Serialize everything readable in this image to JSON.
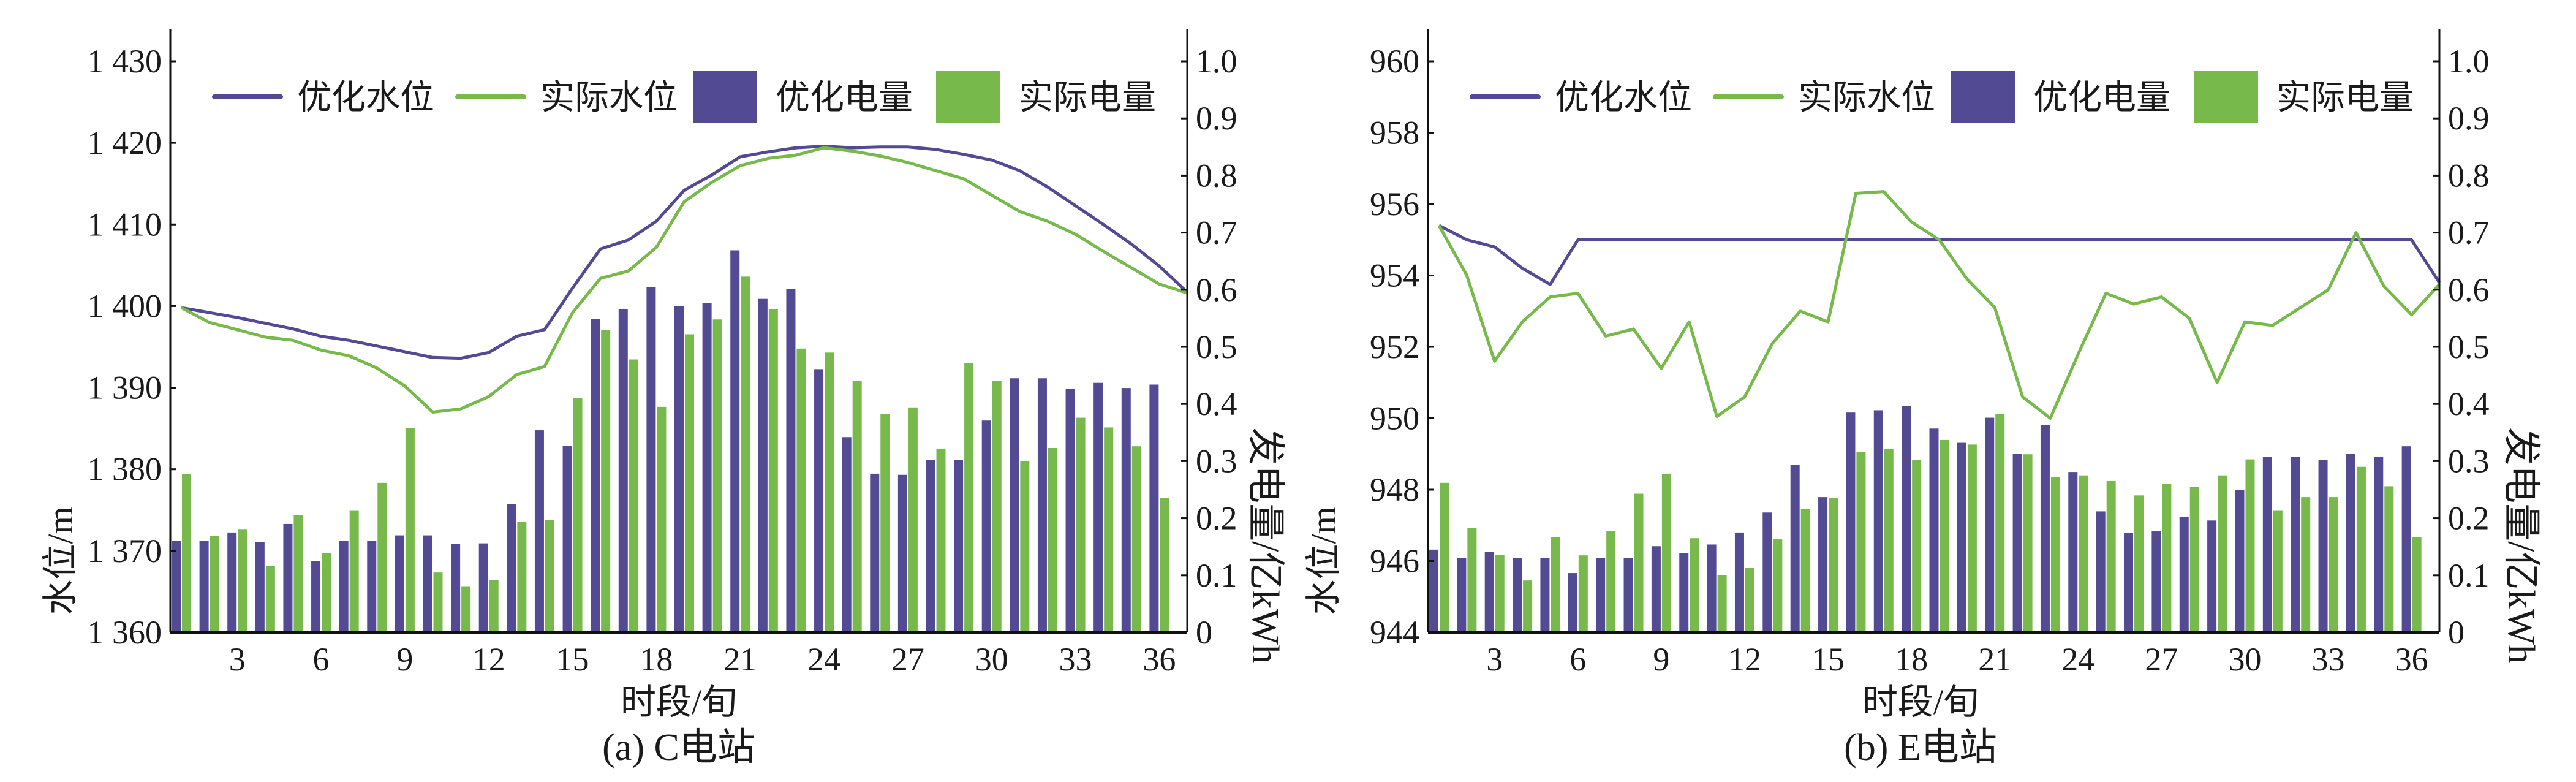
{
  "colors": {
    "optimized": "#524a93",
    "actual": "#77b94b",
    "axis": "#111111"
  },
  "chart_data": [
    {
      "type": "bar+line",
      "caption": "(a) C电站",
      "xlabel": "时段/旬",
      "ylabel_left": "水位/m",
      "ylabel_right": "发电量/亿kWh",
      "ylim_left": [
        1360,
        1430
      ],
      "ylim_right": [
        0,
        1.0
      ],
      "yticks_left": [
        "1 360",
        "1 370",
        "1 380",
        "1 390",
        "1 400",
        "1 410",
        "1 420",
        "1 430"
      ],
      "yticks_left_values": [
        1360,
        1370,
        1380,
        1390,
        1400,
        1410,
        1420,
        1430
      ],
      "yticks_right": [
        "0",
        "0.1",
        "0.2",
        "0.3",
        "0.4",
        "0.5",
        "0.6",
        "0.7",
        "0.8",
        "0.9",
        "1.0"
      ],
      "xticks": [
        "3",
        "6",
        "9",
        "12",
        "15",
        "18",
        "21",
        "24",
        "27",
        "30",
        "33",
        "36"
      ],
      "legend": [
        "优化水位",
        "实际水位",
        "优化电量",
        "实际电量"
      ],
      "legend_position": "top",
      "grid": false,
      "series": [
        {
          "name": "优化水位",
          "kind": "line",
          "axis": "left",
          "x_start": 1,
          "values": [
            1399.8,
            1399.2,
            1398.6,
            1397.9,
            1397.2,
            1396.3,
            1395.8,
            1395.1,
            1394.4,
            1393.7,
            1393.6,
            1394.3,
            1396.3,
            1397.1,
            1402.2,
            1407.0,
            1408.1,
            1410.4,
            1414.2,
            1416.1,
            1418.3,
            1418.9,
            1419.4,
            1419.6,
            1419.4,
            1419.5,
            1419.5,
            1419.2,
            1418.6,
            1417.9,
            1416.6,
            1414.6,
            1412.3,
            1410.0,
            1407.6,
            1404.9,
            1401.7
          ]
        },
        {
          "name": "实际水位",
          "kind": "line",
          "axis": "left",
          "x_start": 1,
          "values": [
            1399.8,
            1398.0,
            1397.1,
            1396.2,
            1395.8,
            1394.6,
            1393.9,
            1392.4,
            1390.2,
            1387.0,
            1387.4,
            1388.9,
            1391.6,
            1392.6,
            1399.2,
            1403.4,
            1404.3,
            1407.2,
            1412.8,
            1415.2,
            1417.2,
            1418.1,
            1418.5,
            1419.4,
            1419.0,
            1418.4,
            1417.6,
            1416.6,
            1415.6,
            1413.6,
            1411.6,
            1410.4,
            1408.8,
            1406.7,
            1404.7,
            1402.7,
            1401.6
          ]
        },
        {
          "name": "优化电量",
          "kind": "bar",
          "axis": "right",
          "x_start": 1,
          "values": [
            0.16,
            0.16,
            0.175,
            0.158,
            0.19,
            0.125,
            0.16,
            0.16,
            0.17,
            0.17,
            0.155,
            0.156,
            0.225,
            0.354,
            0.327,
            0.549,
            0.566,
            0.605,
            0.571,
            0.577,
            0.669,
            0.584,
            0.601,
            0.461,
            0.342,
            0.278,
            0.276,
            0.302,
            0.302,
            0.371,
            0.445,
            0.445,
            0.427,
            0.437,
            0.428,
            0.434
          ]
        },
        {
          "name": "实际电量",
          "kind": "bar",
          "axis": "right",
          "x_start": 1,
          "values": [
            0.277,
            0.169,
            0.181,
            0.117,
            0.206,
            0.139,
            0.214,
            0.262,
            0.358,
            0.105,
            0.081,
            0.092,
            0.194,
            0.197,
            0.41,
            0.529,
            0.478,
            0.395,
            0.522,
            0.548,
            0.623,
            0.566,
            0.497,
            0.49,
            0.441,
            0.382,
            0.394,
            0.322,
            0.471,
            0.44,
            0.3,
            0.323,
            0.376,
            0.359,
            0.326,
            0.236
          ]
        }
      ]
    },
    {
      "type": "bar+line",
      "caption": "(b) E电站",
      "xlabel": "时段/旬",
      "ylabel_left": "水位/m",
      "ylabel_right": "发电量/亿kWh",
      "ylim_left": [
        944,
        960
      ],
      "ylim_right": [
        0,
        1.0
      ],
      "yticks_left": [
        "944",
        "946",
        "948",
        "950",
        "952",
        "954",
        "956",
        "958",
        "960"
      ],
      "yticks_left_values": [
        944,
        946,
        948,
        950,
        952,
        954,
        956,
        958,
        960
      ],
      "yticks_right": [
        "0",
        "0.1",
        "0.2",
        "0.3",
        "0.4",
        "0.5",
        "0.6",
        "0.7",
        "0.8",
        "0.9",
        "1.0"
      ],
      "xticks": [
        "3",
        "6",
        "9",
        "12",
        "15",
        "18",
        "21",
        "24",
        "27",
        "30",
        "33",
        "36"
      ],
      "legend": [
        "优化水位",
        "实际水位",
        "优化电量",
        "实际电量"
      ],
      "legend_position": "top",
      "grid": false,
      "series": [
        {
          "name": "优化水位",
          "kind": "line",
          "axis": "left",
          "x_start": 1,
          "values": [
            955.4,
            955.0,
            954.8,
            954.2,
            953.75,
            955,
            955,
            955,
            955,
            955,
            955,
            955,
            955,
            955,
            955,
            955,
            955,
            955,
            955,
            955,
            955,
            955,
            955,
            955,
            955,
            955,
            955,
            955,
            955,
            955,
            955,
            955,
            955,
            955,
            955,
            955,
            953.8
          ]
        },
        {
          "name": "实际水位",
          "kind": "line",
          "axis": "left",
          "x_start": 1,
          "values": [
            955.4,
            954.0,
            951.6,
            952.7,
            953.4,
            953.5,
            952.3,
            952.5,
            951.4,
            952.7,
            950.05,
            950.6,
            952.1,
            953.0,
            952.7,
            956.3,
            956.35,
            955.5,
            955.0,
            953.9,
            953.1,
            950.6,
            950.0,
            951.8,
            953.5,
            953.2,
            953.4,
            952.8,
            951.0,
            952.7,
            952.6,
            953.1,
            953.6,
            955.2,
            953.7,
            952.9,
            953.75
          ]
        },
        {
          "name": "优化电量",
          "kind": "bar",
          "axis": "right",
          "x_start": 1,
          "values": [
            0.145,
            0.13,
            0.141,
            0.13,
            0.13,
            0.104,
            0.13,
            0.13,
            0.151,
            0.139,
            0.154,
            0.175,
            0.21,
            0.294,
            0.237,
            0.385,
            0.389,
            0.396,
            0.357,
            0.332,
            0.376,
            0.313,
            0.363,
            0.281,
            0.212,
            0.174,
            0.177,
            0.202,
            0.196,
            0.25,
            0.307,
            0.307,
            0.302,
            0.313,
            0.308,
            0.326
          ]
        },
        {
          "name": "实际电量",
          "kind": "bar",
          "axis": "right",
          "x_start": 1,
          "values": [
            0.262,
            0.183,
            0.136,
            0.091,
            0.167,
            0.135,
            0.177,
            0.243,
            0.278,
            0.165,
            0.1,
            0.113,
            0.163,
            0.216,
            0.236,
            0.316,
            0.321,
            0.302,
            0.337,
            0.329,
            0.383,
            0.312,
            0.272,
            0.275,
            0.265,
            0.24,
            0.26,
            0.255,
            0.275,
            0.303,
            0.214,
            0.237,
            0.237,
            0.29,
            0.256,
            0.167
          ]
        }
      ]
    }
  ]
}
